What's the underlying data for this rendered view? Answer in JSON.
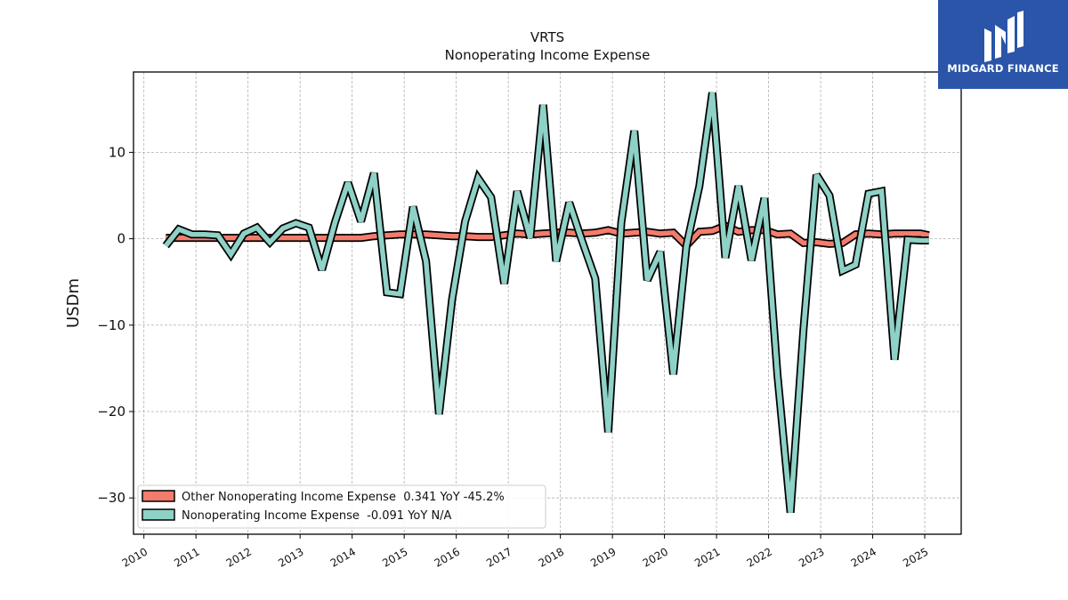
{
  "chart_data": {
    "type": "line",
    "title": "VRTS",
    "subtitle": "Nonoperating Income Expense",
    "ylabel": "USDm",
    "xlabel": "",
    "xlim": [
      2009.8,
      2025.7
    ],
    "ylim": [
      -34.2,
      19.3
    ],
    "x_ticks": [
      "2010",
      "2011",
      "2012",
      "2013",
      "2014",
      "2015",
      "2016",
      "2017",
      "2018",
      "2019",
      "2020",
      "2021",
      "2022",
      "2023",
      "2024",
      "2025"
    ],
    "y_ticks": [
      10,
      0,
      -10,
      -20,
      -30
    ],
    "y_tick_labels": [
      "10",
      "0",
      "−10",
      "−20",
      "−30"
    ],
    "grid": true,
    "legend_position": "lower-left",
    "series": [
      {
        "name": "Other Nonoperating Income Expense  0.341 YoY -45.2%",
        "color": "#f47c6c",
        "x": [
          2010.42,
          2010.67,
          2010.92,
          2011.17,
          2011.42,
          2011.67,
          2011.92,
          2012.17,
          2012.42,
          2012.67,
          2012.92,
          2013.17,
          2013.42,
          2013.67,
          2013.92,
          2014.17,
          2014.42,
          2014.67,
          2014.92,
          2015.17,
          2015.42,
          2015.67,
          2015.92,
          2016.17,
          2016.42,
          2016.67,
          2016.92,
          2017.17,
          2017.42,
          2017.67,
          2017.92,
          2018.17,
          2018.42,
          2018.67,
          2018.92,
          2019.17,
          2019.42,
          2019.67,
          2019.92,
          2020.17,
          2020.42,
          2020.67,
          2020.92,
          2021.17,
          2021.42,
          2021.67,
          2021.92,
          2022.17,
          2022.42,
          2022.67,
          2022.92,
          2023.17,
          2023.42,
          2023.67,
          2023.92,
          2024.17,
          2024.42,
          2024.67,
          2024.92,
          2025.08
        ],
        "values": [
          0.1,
          0.1,
          0.1,
          0.1,
          0.1,
          0.1,
          0.1,
          0.1,
          0.1,
          0.1,
          0.1,
          0.1,
          0.1,
          0.1,
          0.1,
          0.1,
          0.3,
          0.4,
          0.5,
          0.5,
          0.5,
          0.4,
          0.3,
          0.3,
          0.2,
          0.2,
          0.4,
          0.6,
          0.5,
          0.6,
          0.7,
          0.7,
          0.6,
          0.7,
          1.0,
          0.6,
          0.7,
          0.8,
          0.6,
          0.7,
          -0.8,
          0.8,
          0.9,
          1.5,
          0.8,
          1.0,
          1.0,
          0.5,
          0.6,
          -0.5,
          -0.4,
          -0.6,
          -0.5,
          0.5,
          0.6,
          0.5,
          0.6,
          0.6,
          0.6,
          0.4
        ]
      },
      {
        "name": "Nonoperating Income Expense  -0.091 YoY N/A",
        "color": "#8ed1c6",
        "x": [
          2010.42,
          2010.67,
          2010.92,
          2011.17,
          2011.42,
          2011.67,
          2011.92,
          2012.17,
          2012.42,
          2012.67,
          2012.92,
          2013.17,
          2013.42,
          2013.67,
          2013.92,
          2014.17,
          2014.42,
          2014.67,
          2014.92,
          2015.17,
          2015.42,
          2015.67,
          2015.92,
          2016.17,
          2016.42,
          2016.67,
          2016.92,
          2017.17,
          2017.42,
          2017.67,
          2017.92,
          2018.17,
          2018.42,
          2018.67,
          2018.92,
          2019.17,
          2019.42,
          2019.67,
          2019.92,
          2020.17,
          2020.42,
          2020.67,
          2020.92,
          2021.17,
          2021.42,
          2021.67,
          2021.92,
          2022.17,
          2022.42,
          2022.67,
          2022.92,
          2023.17,
          2023.42,
          2023.67,
          2023.92,
          2024.17,
          2024.42,
          2024.67,
          2024.92,
          2025.08
        ],
        "values": [
          -0.8,
          1.1,
          0.5,
          0.5,
          0.4,
          -1.8,
          0.6,
          1.3,
          -0.4,
          1.2,
          1.8,
          1.3,
          -3.6,
          1.9,
          6.5,
          2.0,
          7.6,
          -6.2,
          -6.4,
          3.7,
          -2.6,
          -20.3,
          -7.0,
          2.0,
          7.0,
          4.8,
          -5.2,
          5.5,
          0.1,
          15.5,
          -2.6,
          4.2,
          -0.3,
          -4.6,
          -22.4,
          1.9,
          12.5,
          -4.8,
          -1.5,
          -15.7,
          -0.9,
          6.1,
          16.9,
          -2.2,
          6.1,
          -2.5,
          4.7,
          -15.7,
          -31.7,
          -10.5,
          7.4,
          5.0,
          -3.7,
          -3.0,
          5.2,
          5.5,
          -14.0,
          -0.1,
          -0.2,
          -0.2
        ]
      }
    ]
  },
  "logo": {
    "text": "MIDGARD FINANCE"
  }
}
